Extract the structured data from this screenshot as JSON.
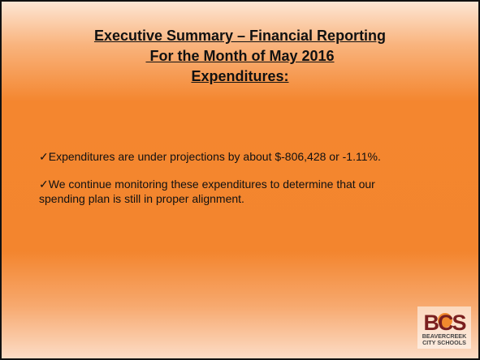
{
  "slide": {
    "title": [
      "Executive Summary – Financial Reporting",
      " For the Month of May 2016",
      "Expenditures:"
    ],
    "bullets": [
      "✓Expenditures are under projections by about $-806,428 or -1.11%.",
      "✓We continue monitoring these expenditures to determine that our spending plan is still in proper alignment."
    ],
    "logo": {
      "mark": "BCS",
      "line1": "BEAVERCREEK",
      "line2": "CITY SCHOOLS"
    }
  }
}
